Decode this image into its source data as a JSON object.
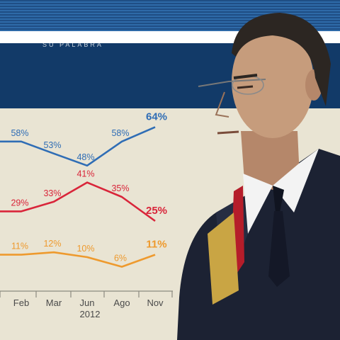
{
  "header": {
    "text": "SU PALABRA"
  },
  "chart_data": {
    "type": "line",
    "categories": [
      "",
      "Feb",
      "Mar",
      "Jun",
      "Ago",
      "Nov"
    ],
    "year_label": "2012",
    "series": [
      {
        "color": "#2f6db5",
        "values": [
          58,
          58,
          53,
          48,
          58,
          64
        ],
        "labels": [
          "",
          "58%",
          "53%",
          "48%",
          "58%",
          "64%"
        ]
      },
      {
        "color": "#d9253a",
        "values": [
          29,
          29,
          33,
          41,
          35,
          25
        ],
        "labels": [
          "",
          "29%",
          "33%",
          "41%",
          "35%",
          "25%"
        ]
      },
      {
        "color": "#ee9a2e",
        "values": [
          11,
          11,
          12,
          10,
          6,
          11
        ],
        "labels": [
          "",
          "11%",
          "12%",
          "10%",
          "6%",
          "11%"
        ]
      }
    ]
  },
  "colors": {
    "header": "#123a68",
    "background": "#e9e4d3",
    "suit": "#1c2233",
    "skin": "#c69c7c"
  }
}
